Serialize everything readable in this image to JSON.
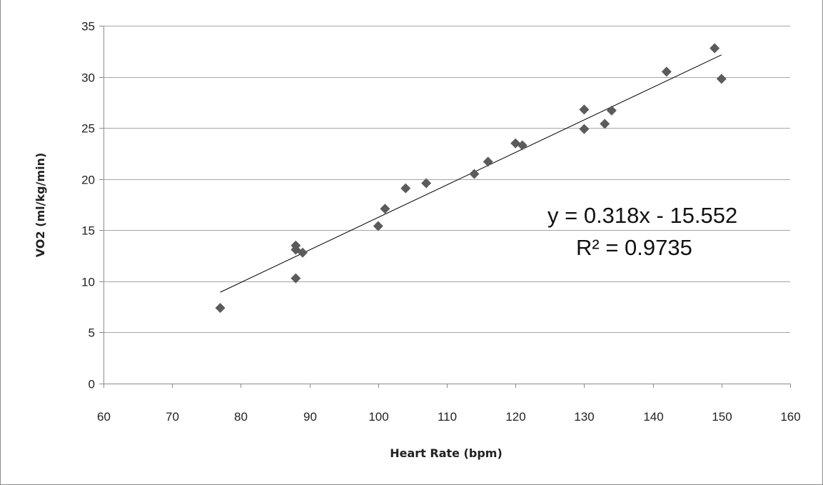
{
  "chart_data": {
    "type": "scatter",
    "title": "",
    "xlabel": "Heart Rate (bpm)",
    "ylabel": "VO2 (ml/kg/min)",
    "xlim": [
      60,
      160
    ],
    "ylim": [
      0,
      35
    ],
    "xticks": [
      "60",
      "70",
      "80",
      "90",
      "100",
      "110",
      "120",
      "130",
      "140",
      "150",
      "160"
    ],
    "yticks": [
      "0",
      "5",
      "10",
      "15",
      "20",
      "25",
      "30",
      "35"
    ],
    "grid": "horizontal",
    "legend": "none",
    "marker": "diamond",
    "colors": {
      "marker": "#5b5b5b",
      "trendline": "#000000",
      "grid": "#a6a6a6",
      "axis": "#8c8c8c"
    },
    "series": [
      {
        "points": [
          {
            "x": 77,
            "y": 7.4
          },
          {
            "x": 88,
            "y": 13.5
          },
          {
            "x": 88,
            "y": 13.1
          },
          {
            "x": 89,
            "y": 12.8
          },
          {
            "x": 88,
            "y": 10.3
          },
          {
            "x": 100,
            "y": 15.4
          },
          {
            "x": 101,
            "y": 17.1
          },
          {
            "x": 104,
            "y": 19.1
          },
          {
            "x": 107,
            "y": 19.6
          },
          {
            "x": 114,
            "y": 20.5
          },
          {
            "x": 116,
            "y": 21.7
          },
          {
            "x": 120,
            "y": 23.5
          },
          {
            "x": 121,
            "y": 23.3
          },
          {
            "x": 130,
            "y": 26.8
          },
          {
            "x": 130,
            "y": 24.9
          },
          {
            "x": 133,
            "y": 25.4
          },
          {
            "x": 134,
            "y": 26.7
          },
          {
            "x": 142,
            "y": 30.5
          },
          {
            "x": 149,
            "y": 32.8
          },
          {
            "x": 150,
            "y": 29.8
          }
        ]
      }
    ],
    "trendline": {
      "type": "linear",
      "slope": 0.318,
      "intercept": -15.552,
      "x_range": [
        77,
        150
      ],
      "equation": "y = 0.318x - 15.552",
      "r_squared": "R² = 0.9735"
    }
  }
}
